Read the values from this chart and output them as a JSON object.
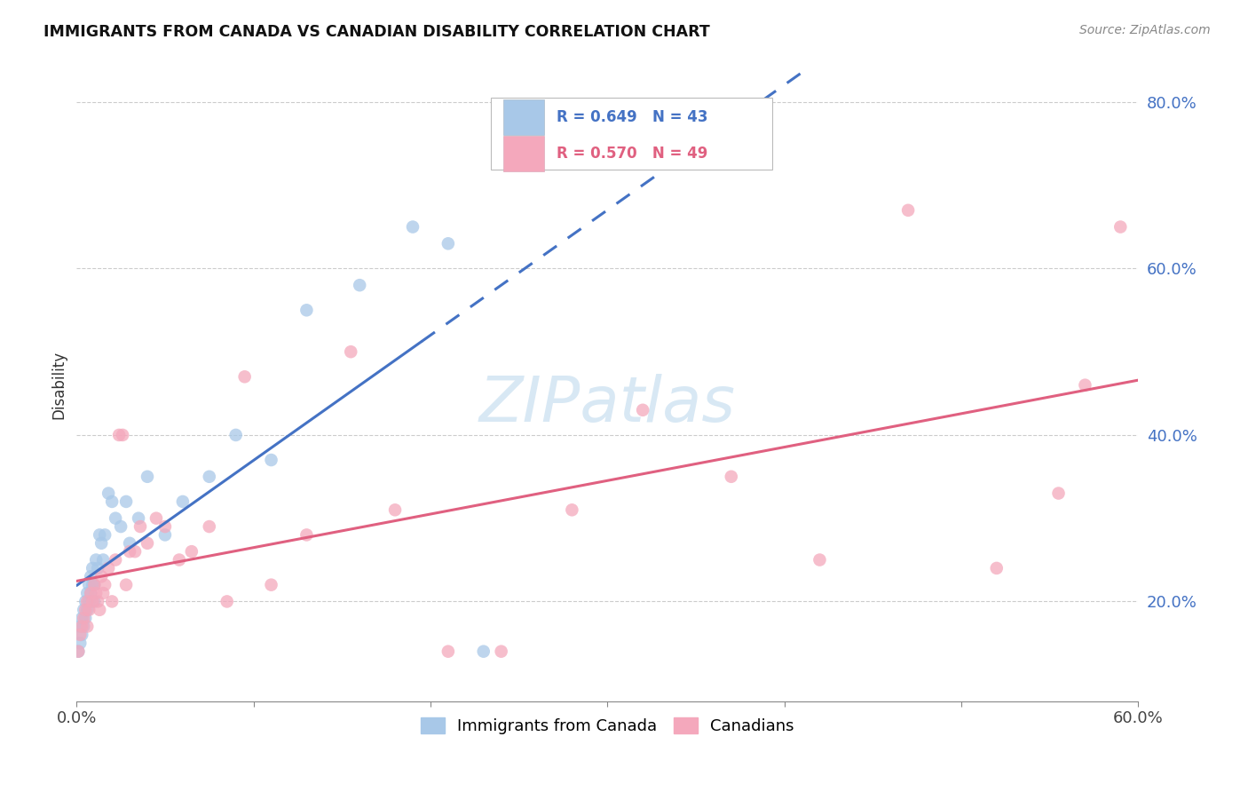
{
  "title": "IMMIGRANTS FROM CANADA VS CANADIAN DISABILITY CORRELATION CHART",
  "source": "Source: ZipAtlas.com",
  "ylabel": "Disability",
  "xlim": [
    0.0,
    0.6
  ],
  "ylim": [
    0.08,
    0.84
  ],
  "x_ticks": [
    0.0,
    0.1,
    0.2,
    0.3,
    0.4,
    0.5,
    0.6
  ],
  "x_tick_labels": [
    "0.0%",
    "",
    "",
    "",
    "",
    "",
    "60.0%"
  ],
  "y_ticks": [
    0.2,
    0.4,
    0.6,
    0.8
  ],
  "y_tick_labels": [
    "20.0%",
    "40.0%",
    "60.0%",
    "80.0%"
  ],
  "blue_color": "#A8C8E8",
  "pink_color": "#F4A8BC",
  "blue_line_color": "#4472C4",
  "pink_line_color": "#E06080",
  "grid_color": "#CCCCCC",
  "watermark_text": "ZIPatlas",
  "watermark_color": "#D8E8F4",
  "legend_blue_r": "R = 0.649",
  "legend_blue_n": "N = 43",
  "legend_pink_r": "R = 0.570",
  "legend_pink_n": "N = 49",
  "legend_blue_label": "Immigrants from Canada",
  "legend_pink_label": "Canadians",
  "blue_line_x_start": 0.0,
  "blue_line_y_start": 0.105,
  "blue_line_solid_x_end": 0.195,
  "blue_line_x_end": 0.6,
  "pink_line_x_start": 0.0,
  "pink_line_y_start": 0.145,
  "pink_line_x_end": 0.6,
  "pink_line_y_end": 0.445,
  "blue_x": [
    0.001,
    0.002,
    0.002,
    0.003,
    0.003,
    0.004,
    0.004,
    0.005,
    0.005,
    0.006,
    0.006,
    0.007,
    0.007,
    0.008,
    0.008,
    0.009,
    0.009,
    0.01,
    0.01,
    0.011,
    0.012,
    0.013,
    0.014,
    0.015,
    0.016,
    0.018,
    0.02,
    0.022,
    0.025,
    0.028,
    0.03,
    0.035,
    0.04,
    0.05,
    0.06,
    0.075,
    0.09,
    0.11,
    0.13,
    0.16,
    0.19,
    0.21,
    0.23
  ],
  "blue_y": [
    0.14,
    0.15,
    0.17,
    0.16,
    0.18,
    0.17,
    0.19,
    0.18,
    0.2,
    0.19,
    0.21,
    0.2,
    0.22,
    0.21,
    0.23,
    0.22,
    0.24,
    0.2,
    0.22,
    0.25,
    0.24,
    0.28,
    0.27,
    0.25,
    0.28,
    0.33,
    0.32,
    0.3,
    0.29,
    0.32,
    0.27,
    0.3,
    0.35,
    0.28,
    0.32,
    0.35,
    0.4,
    0.37,
    0.55,
    0.58,
    0.65,
    0.63,
    0.14
  ],
  "pink_x": [
    0.001,
    0.002,
    0.003,
    0.004,
    0.005,
    0.006,
    0.006,
    0.007,
    0.008,
    0.009,
    0.01,
    0.011,
    0.012,
    0.013,
    0.014,
    0.015,
    0.016,
    0.018,
    0.02,
    0.022,
    0.024,
    0.026,
    0.028,
    0.03,
    0.033,
    0.036,
    0.04,
    0.045,
    0.05,
    0.058,
    0.065,
    0.075,
    0.085,
    0.095,
    0.11,
    0.13,
    0.155,
    0.18,
    0.21,
    0.24,
    0.28,
    0.32,
    0.37,
    0.42,
    0.47,
    0.52,
    0.555,
    0.57,
    0.59
  ],
  "pink_y": [
    0.14,
    0.16,
    0.17,
    0.18,
    0.19,
    0.17,
    0.2,
    0.19,
    0.21,
    0.2,
    0.22,
    0.21,
    0.2,
    0.19,
    0.23,
    0.21,
    0.22,
    0.24,
    0.2,
    0.25,
    0.4,
    0.4,
    0.22,
    0.26,
    0.26,
    0.29,
    0.27,
    0.3,
    0.29,
    0.25,
    0.26,
    0.29,
    0.2,
    0.47,
    0.22,
    0.28,
    0.5,
    0.31,
    0.14,
    0.14,
    0.31,
    0.43,
    0.35,
    0.25,
    0.67,
    0.24,
    0.33,
    0.46,
    0.65
  ]
}
